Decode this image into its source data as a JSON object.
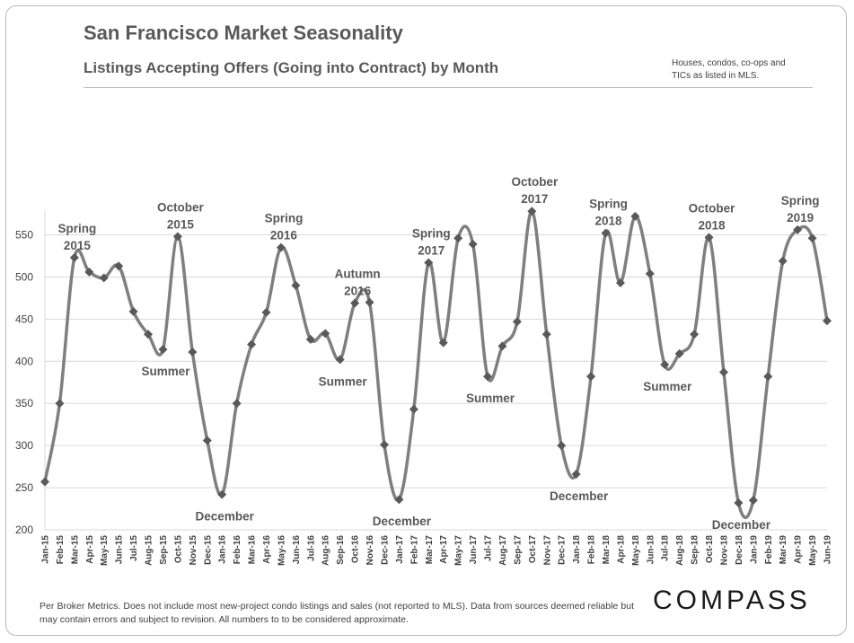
{
  "header": {
    "title": "San Francisco Market Seasonality",
    "subtitle": "Listings Accepting Offers (Going into Contract) by Month",
    "note": "Houses, condos, co-ops and TICs as listed in MLS."
  },
  "footer": {
    "disclaimer": "Per Broker Metrics. Does not include most new-project condo listings and sales (not reported to MLS). Data from sources deemed reliable but may contain errors and subject to revision.  All numbers to to be considered approximate.",
    "brand": "COMPASS"
  },
  "colors": {
    "line": "#7f7f7f",
    "marker": "#595959",
    "grid": "#d9d9d9",
    "axis": "#d9d9d9"
  },
  "chart_data": {
    "type": "line",
    "title": "Listings Accepting Offers (Going into Contract) by Month",
    "xlabel": "",
    "ylabel": "",
    "ylim": [
      200,
      580
    ],
    "yticks": [
      200,
      250,
      300,
      350,
      400,
      450,
      500,
      550
    ],
    "categories": [
      "Jan-15",
      "Feb-15",
      "Mar-15",
      "Apr-15",
      "May-15",
      "Jun-15",
      "Jul-15",
      "Aug-15",
      "Sep-15",
      "Oct-15",
      "Nov-15",
      "Dec-15",
      "Jan-16",
      "Feb-16",
      "Mar-16",
      "Apr-16",
      "May-16",
      "Jun-16",
      "Jul-16",
      "Aug-16",
      "Sep-16",
      "Oct-16",
      "Nov-16",
      "Dec-16",
      "Jan-17",
      "Feb-17",
      "Mar-17",
      "Apr-17",
      "May-17",
      "Jun-17",
      "Jul-17",
      "Aug-17",
      "Sep-17",
      "Oct-17",
      "Nov-17",
      "Dec-17",
      "Jan-18",
      "Feb-18",
      "Mar-18",
      "Apr-18",
      "May-18",
      "Jun-18",
      "Jul-18",
      "Aug-18",
      "Sep-18",
      "Oct-18",
      "Nov-18",
      "Dec-18",
      "Jan-19",
      "Feb-19",
      "Mar-19",
      "Apr-19",
      "May-19",
      "Jun-19"
    ],
    "values": [
      257,
      350,
      523,
      506,
      499,
      513,
      459,
      432,
      414,
      548,
      411,
      306,
      242,
      350,
      420,
      458,
      535,
      490,
      426,
      433,
      402,
      469,
      470,
      301,
      236,
      343,
      517,
      422,
      546,
      539,
      382,
      418,
      447,
      578,
      432,
      300,
      266,
      382,
      552,
      493,
      572,
      504,
      396,
      409,
      432,
      547,
      387,
      232,
      235,
      382,
      519,
      556,
      546,
      448
    ],
    "annotations": [
      {
        "index": 2,
        "lines": [
          "Spring",
          "2015"
        ],
        "pos": "above"
      },
      {
        "index": 9,
        "lines": [
          "October",
          "2015"
        ],
        "pos": "above"
      },
      {
        "index": 8,
        "lines": [
          "Summer"
        ],
        "pos": "below"
      },
      {
        "index": 12,
        "lines": [
          "December"
        ],
        "pos": "below"
      },
      {
        "index": 16,
        "lines": [
          "Spring",
          "2016"
        ],
        "pos": "above"
      },
      {
        "index": 21,
        "lines": [
          "Autumn",
          "2016"
        ],
        "pos": "above"
      },
      {
        "index": 20,
        "lines": [
          "Summer"
        ],
        "pos": "below"
      },
      {
        "index": 24,
        "lines": [
          "December"
        ],
        "pos": "below"
      },
      {
        "index": 26,
        "lines": [
          "Spring",
          "2017"
        ],
        "pos": "above"
      },
      {
        "index": 33,
        "lines": [
          "October",
          "2017"
        ],
        "pos": "above"
      },
      {
        "index": 30,
        "lines": [
          "Summer"
        ],
        "pos": "below"
      },
      {
        "index": 36,
        "lines": [
          "December"
        ],
        "pos": "below"
      },
      {
        "index": 38,
        "lines": [
          "Spring",
          "2018"
        ],
        "pos": "above"
      },
      {
        "index": 45,
        "lines": [
          "October",
          "2018"
        ],
        "pos": "above"
      },
      {
        "index": 42,
        "lines": [
          "Summer"
        ],
        "pos": "below"
      },
      {
        "index": 47,
        "lines": [
          "December"
        ],
        "pos": "below"
      },
      {
        "index": 51,
        "lines": [
          "Spring",
          "2019"
        ],
        "pos": "above"
      }
    ]
  }
}
